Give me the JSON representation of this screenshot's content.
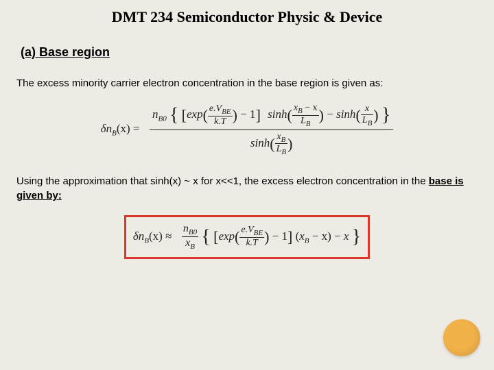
{
  "title": "DMT 234 Semiconductor Physic & Device",
  "section": "(a) Base region",
  "para1": "The excess minority carrier electron concentration in the base region is given as:",
  "para2_pre": "Using the approximation that sinh(x) ~ x for x<<1, the excess electron concentration in the ",
  "para2_bu": "base is given by:",
  "eq1_lhs": "δn",
  "eq1_lhs_sub": "B",
  "eq1_lhs_arg": "(x) =",
  "n_b0": "n",
  "n_b0_sub": "B0",
  "exp_label": "exp",
  "vbe_num": "e.V",
  "vbe_num_sub": "BE",
  "vbe_den": "k.T",
  "minus1": " − 1",
  "sinh_label": "sinh",
  "xb_minus_x": "x",
  "xb_sub": "B",
  "minus_x": " − x",
  "Lb": "L",
  "Lb_sub": "B",
  "x": "x",
  "eq2_lhs": "δn",
  "eq2_lhs_sub": "B",
  "eq2_lhs_arg": "(x) ≈",
  "colors": {
    "background": "#eeebe5",
    "highlight_border": "#d9372c",
    "circle": "#f2b24a",
    "text": "#000000"
  }
}
